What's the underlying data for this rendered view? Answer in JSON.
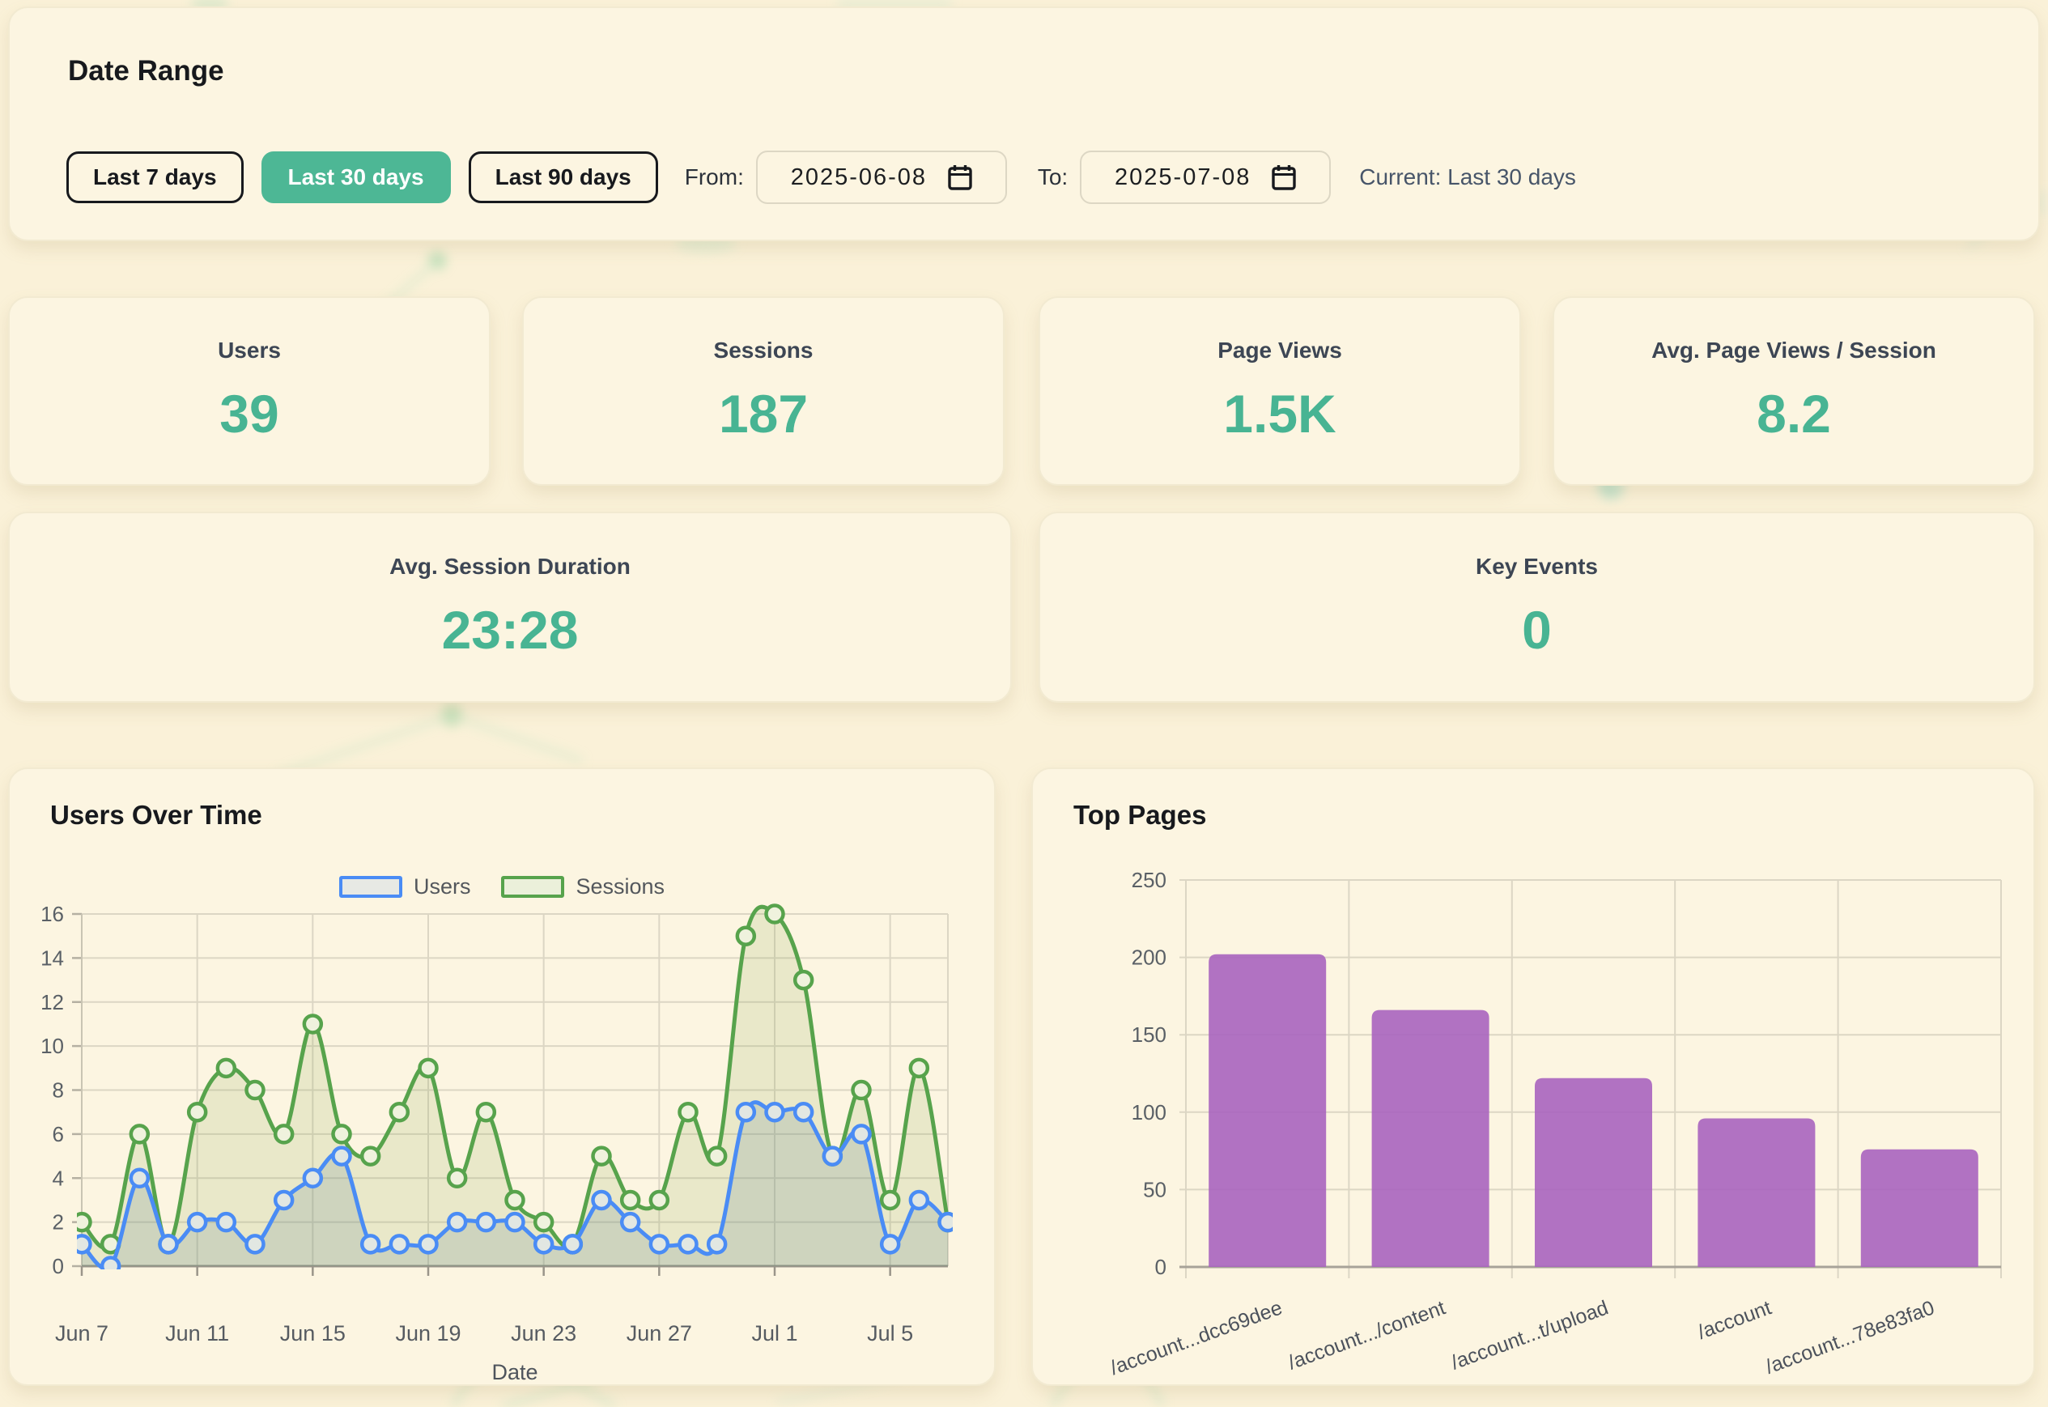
{
  "date_range": {
    "title": "Date Range",
    "presets": [
      {
        "label": "Last 7 days",
        "active": false
      },
      {
        "label": "Last 30 days",
        "active": true
      },
      {
        "label": "Last 90 days",
        "active": false
      }
    ],
    "from_label": "From:",
    "from_value": "2025-06-08",
    "to_label": "To:",
    "to_value": "2025-07-08",
    "current": "Current: Last 30 days"
  },
  "stats": [
    {
      "label": "Users",
      "value": "39"
    },
    {
      "label": "Sessions",
      "value": "187"
    },
    {
      "label": "Page Views",
      "value": "1.5K"
    },
    {
      "label": "Avg. Page Views / Session",
      "value": "8.2"
    },
    {
      "label": "Avg. Session Duration",
      "value": "23:28"
    },
    {
      "label": "Key Events",
      "value": "0"
    }
  ],
  "colors": {
    "accent_teal": "#4db795",
    "stat_value": "#48b493",
    "users_line": "#4a8cf5",
    "sessions_line": "#57a34c",
    "bar_purple": "#a864bf",
    "grid": "#dcd6c4",
    "axis": "#9a958a",
    "tick_text": "#5a6066"
  },
  "chart_data": [
    {
      "type": "line",
      "title": "Users Over Time",
      "xlabel": "Date",
      "x": [
        "Jun 7",
        "Jun 8",
        "Jun 9",
        "Jun 10",
        "Jun 11",
        "Jun 12",
        "Jun 13",
        "Jun 14",
        "Jun 15",
        "Jun 16",
        "Jun 17",
        "Jun 18",
        "Jun 19",
        "Jun 20",
        "Jun 21",
        "Jun 22",
        "Jun 23",
        "Jun 24",
        "Jun 25",
        "Jun 26",
        "Jun 27",
        "Jun 28",
        "Jun 29",
        "Jun 30",
        "Jul 1",
        "Jul 2",
        "Jul 3",
        "Jul 4",
        "Jul 5",
        "Jul 6",
        "Jul 7"
      ],
      "xtick_indices": [
        0,
        4,
        8,
        12,
        16,
        20,
        24,
        28
      ],
      "xtick_labels": [
        "Jun 7",
        "Jun 11",
        "Jun 15",
        "Jun 19",
        "Jun 23",
        "Jun 27",
        "Jul 1",
        "Jul 5"
      ],
      "ylim": [
        0,
        16
      ],
      "yticks": [
        0,
        2,
        4,
        6,
        8,
        10,
        12,
        14,
        16
      ],
      "grid": true,
      "legend_position": "top-center",
      "series": [
        {
          "name": "Users",
          "color": "#4a8cf5",
          "marker_fill": "#e2e7e2",
          "area_fill": "rgba(110,140,150,0.22)",
          "values": [
            1,
            0,
            4,
            1,
            2,
            2,
            1,
            3,
            4,
            5,
            1,
            1,
            1,
            2,
            2,
            2,
            1,
            1,
            3,
            2,
            1,
            1,
            1,
            7,
            7,
            7,
            5,
            6,
            1,
            3,
            2
          ]
        },
        {
          "name": "Sessions",
          "color": "#57a34c",
          "marker_fill": "#eff2dd",
          "area_fill": "rgba(135,165,80,0.16)",
          "values": [
            2,
            1,
            6,
            1,
            7,
            9,
            8,
            6,
            11,
            6,
            5,
            7,
            9,
            4,
            7,
            3,
            2,
            1,
            5,
            3,
            3,
            7,
            5,
            15,
            16,
            13,
            5,
            8,
            3,
            9,
            2
          ]
        }
      ]
    },
    {
      "type": "bar",
      "title": "Top Pages",
      "categories": [
        "/account...dcc69dee",
        "/account.../content",
        "/account...t/upload",
        "/account",
        "/account...78e83fa0"
      ],
      "values": [
        202,
        166,
        122,
        96,
        76
      ],
      "ylim": [
        0,
        250
      ],
      "yticks": [
        0,
        50,
        100,
        150,
        200,
        250
      ],
      "bar_color": "#a864bf",
      "grid": true
    }
  ]
}
